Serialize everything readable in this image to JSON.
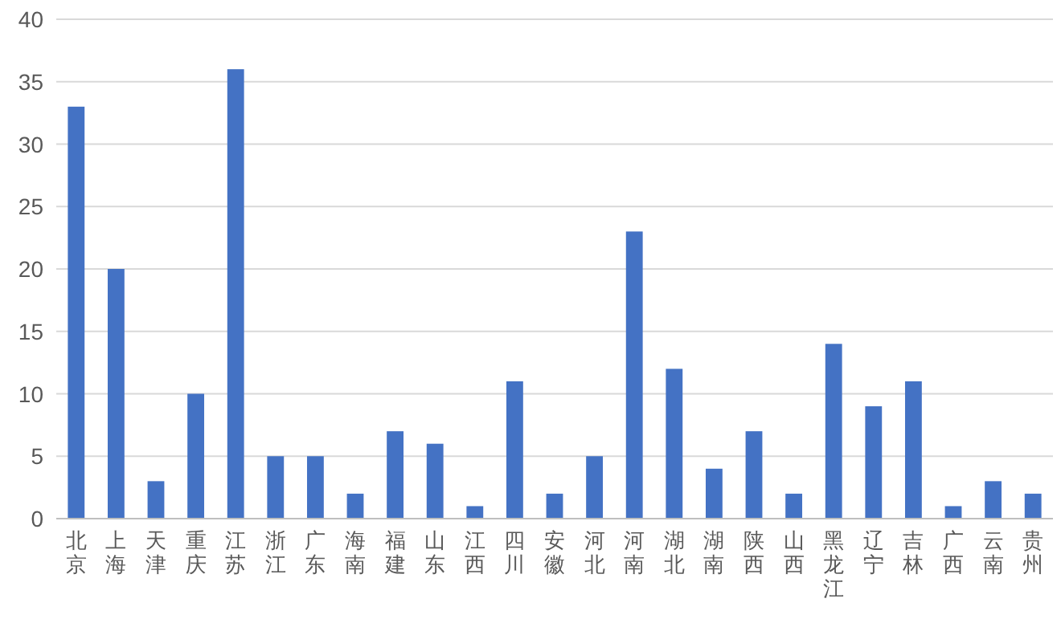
{
  "chart_data": {
    "type": "bar",
    "categories": [
      "北京",
      "上海",
      "天津",
      "重庆",
      "江苏",
      "浙江",
      "广东",
      "海南",
      "福建",
      "山东",
      "江西",
      "四川",
      "安徽",
      "河北",
      "河南",
      "湖北",
      "湖南",
      "陕西",
      "山西",
      "黑龙江",
      "辽宁",
      "吉林",
      "广西",
      "云南",
      "贵州"
    ],
    "values": [
      33,
      20,
      3,
      10,
      36,
      5,
      5,
      2,
      7,
      6,
      1,
      11,
      2,
      5,
      23,
      12,
      4,
      7,
      2,
      14,
      9,
      11,
      1,
      3,
      2
    ],
    "color": "#4472c4",
    "ylim": [
      0,
      40
    ],
    "yticks": [
      0,
      5,
      10,
      15,
      20,
      25,
      30,
      35,
      40
    ],
    "grid": "y"
  }
}
